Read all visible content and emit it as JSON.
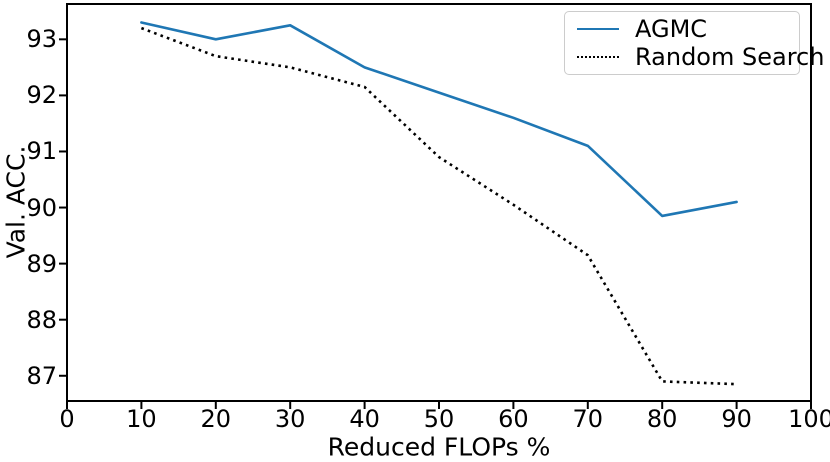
{
  "chart_data": {
    "type": "line",
    "title": "",
    "xlabel": "Reduced FLOPs %",
    "ylabel": "Val. ACC.",
    "x": [
      10,
      20,
      30,
      40,
      50,
      60,
      70,
      80,
      90
    ],
    "series": [
      {
        "name": "AGMC",
        "color": "#1f77b4",
        "style": "solid",
        "values": [
          93.3,
          93.0,
          93.25,
          92.5,
          92.05,
          91.6,
          91.1,
          89.85,
          90.1
        ]
      },
      {
        "name": "Random Search",
        "color": "#000000",
        "style": "dotted",
        "values": [
          93.2,
          92.7,
          92.5,
          92.15,
          90.9,
          90.05,
          89.15,
          86.9,
          86.85
        ]
      }
    ],
    "xlim": [
      0,
      100
    ],
    "ylim": [
      86.55,
      93.63
    ],
    "xticks": [
      "0",
      "10",
      "20",
      "30",
      "40",
      "50",
      "60",
      "70",
      "80",
      "90",
      "100"
    ],
    "xtick_values": [
      0,
      10,
      20,
      30,
      40,
      50,
      60,
      70,
      80,
      90,
      100
    ],
    "yticks": [
      "87",
      "88",
      "89",
      "90",
      "91",
      "92",
      "93"
    ],
    "ytick_values": [
      87,
      88,
      89,
      90,
      91,
      92,
      93
    ],
    "grid": false,
    "legend_position": "upper right",
    "axis_color": "#000000",
    "legend_border_color": "#cccccc"
  }
}
